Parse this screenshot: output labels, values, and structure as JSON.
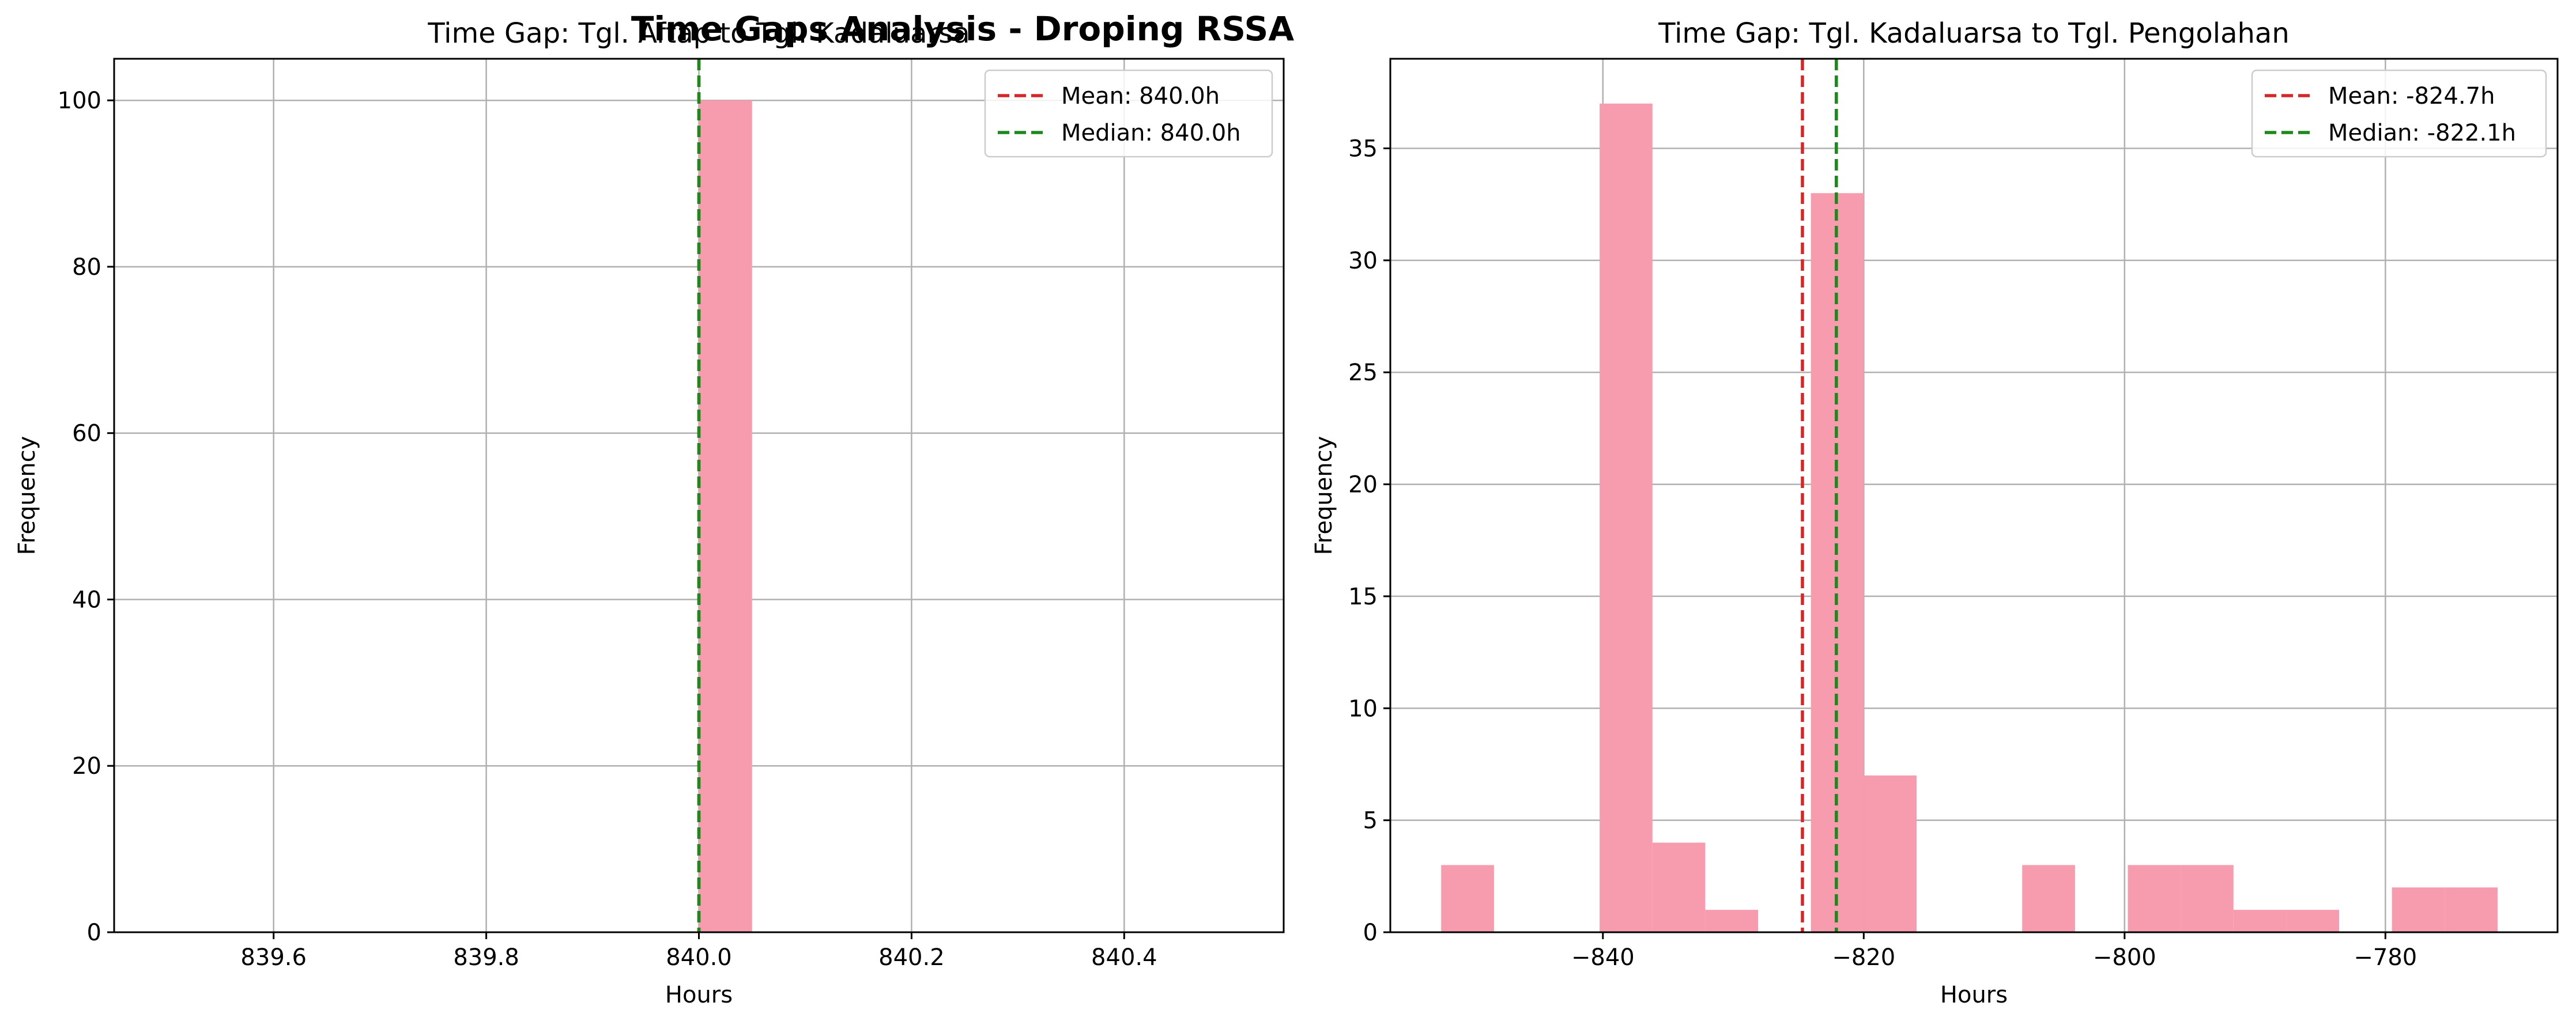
{
  "figure": {
    "suptitle": "Time Gaps Analysis - Droping RSSA"
  },
  "chart_data": [
    {
      "type": "histogram",
      "title": "Time Gap: Tgl. Aftap to Tgl. Kadaluarsa",
      "xlabel": "Hours",
      "ylabel": "Frequency",
      "xlim": [
        839.45,
        840.55
      ],
      "ylim": [
        0,
        105
      ],
      "xticks": [
        839.6,
        839.8,
        840.0,
        840.2,
        840.4
      ],
      "xtick_labels": [
        "839.6",
        "839.8",
        "840.0",
        "840.2",
        "840.4"
      ],
      "yticks": [
        0,
        20,
        40,
        60,
        80,
        100
      ],
      "ytick_labels": [
        "0",
        "20",
        "40",
        "60",
        "80",
        "100"
      ],
      "grid": true,
      "bars": [
        {
          "x0": 840.0,
          "x1": 840.05,
          "count": 100
        }
      ],
      "vlines": [
        {
          "name": "Mean: 840.0h",
          "x": 840.0,
          "color": "#d62728"
        },
        {
          "name": "Median: 840.0h",
          "x": 840.0,
          "color": "#1a8a1a"
        }
      ],
      "legend": [
        "Mean: 840.0h",
        "Median: 840.0h"
      ],
      "legend_position": "top-right",
      "bar_color": "#f79bae"
    },
    {
      "type": "histogram",
      "title": "Time Gap: Tgl. Kadaluarsa to Tgl. Pengolahan",
      "xlabel": "Hours",
      "ylabel": "Frequency",
      "xlim": [
        -856.3,
        -766.8
      ],
      "ylim": [
        0,
        39
      ],
      "xticks": [
        -840,
        -820,
        -800,
        -780
      ],
      "xtick_labels": [
        "−840",
        "−820",
        "−800",
        "−780"
      ],
      "yticks": [
        0,
        5,
        10,
        15,
        20,
        25,
        30,
        35
      ],
      "ytick_labels": [
        "0",
        "5",
        "10",
        "15",
        "20",
        "25",
        "30",
        "35"
      ],
      "grid": true,
      "bars": [
        {
          "x0": -852.4,
          "x1": -848.35,
          "count": 3
        },
        {
          "x0": -840.25,
          "x1": -836.2,
          "count": 37
        },
        {
          "x0": -836.2,
          "x1": -832.15,
          "count": 4
        },
        {
          "x0": -832.15,
          "x1": -828.1,
          "count": 1
        },
        {
          "x0": -824.05,
          "x1": -820.0,
          "count": 33
        },
        {
          "x0": -820.0,
          "x1": -815.95,
          "count": 7
        },
        {
          "x0": -807.85,
          "x1": -803.8,
          "count": 3
        },
        {
          "x0": -799.75,
          "x1": -795.7,
          "count": 3
        },
        {
          "x0": -795.7,
          "x1": -791.65,
          "count": 3
        },
        {
          "x0": -791.65,
          "x1": -787.6,
          "count": 1
        },
        {
          "x0": -787.6,
          "x1": -783.55,
          "count": 1
        },
        {
          "x0": -779.5,
          "x1": -775.45,
          "count": 2
        },
        {
          "x0": -775.45,
          "x1": -771.4,
          "count": 2
        }
      ],
      "vlines": [
        {
          "name": "Mean: -824.7h",
          "x": -824.7,
          "color": "#d62728"
        },
        {
          "name": "Median: -822.1h",
          "x": -822.1,
          "color": "#1a8a1a"
        }
      ],
      "legend": [
        "Mean: -824.7h",
        "Median: -822.1h"
      ],
      "legend_position": "top-right",
      "bar_color": "#f79bae"
    }
  ]
}
